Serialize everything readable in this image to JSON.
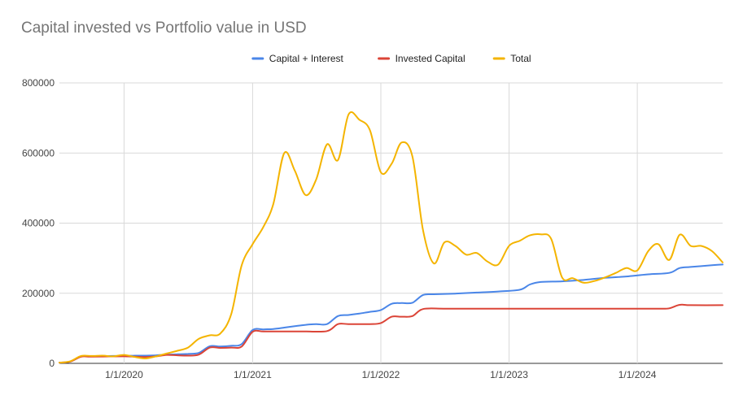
{
  "chart_data": {
    "type": "line",
    "title": "Capital invested vs Portfolio value in USD",
    "xlabel": "",
    "ylabel": "",
    "ylim": [
      0,
      800000
    ],
    "y_ticks": [
      0,
      200000,
      400000,
      600000,
      800000
    ],
    "y_tick_labels": [
      "0",
      "200000",
      "400000",
      "600000",
      "800000"
    ],
    "xlim": [
      "2019-07-01",
      "2024-08-31"
    ],
    "x_ticks": [
      "2020-01-01",
      "2021-01-01",
      "2022-01-01",
      "2023-01-01",
      "2024-01-01"
    ],
    "x_tick_labels": [
      "1/1/2020",
      "1/1/2021",
      "1/1/2022",
      "1/1/2023",
      "1/1/2024"
    ],
    "grid": true,
    "legend_position": "top-center",
    "series": [
      {
        "name": "Capital + Interest",
        "color": "#4a86e8",
        "points": [
          [
            "2019-07-01",
            2000
          ],
          [
            "2019-08-01",
            5000
          ],
          [
            "2019-09-01",
            20000
          ],
          [
            "2019-10-01",
            20000
          ],
          [
            "2019-12-01",
            21000
          ],
          [
            "2020-01-01",
            21000
          ],
          [
            "2020-02-01",
            22000
          ],
          [
            "2020-03-01",
            22000
          ],
          [
            "2020-04-01",
            23000
          ],
          [
            "2020-05-01",
            25000
          ],
          [
            "2020-06-01",
            26000
          ],
          [
            "2020-07-01",
            27000
          ],
          [
            "2020-08-01",
            30000
          ],
          [
            "2020-09-01",
            49000
          ],
          [
            "2020-10-01",
            48000
          ],
          [
            "2020-11-01",
            50000
          ],
          [
            "2020-12-01",
            55000
          ],
          [
            "2021-01-01",
            95000
          ],
          [
            "2021-02-01",
            97000
          ],
          [
            "2021-03-01",
            98000
          ],
          [
            "2021-04-01",
            102000
          ],
          [
            "2021-05-01",
            106000
          ],
          [
            "2021-06-01",
            110000
          ],
          [
            "2021-07-01",
            112000
          ],
          [
            "2021-08-01",
            112000
          ],
          [
            "2021-09-01",
            135000
          ],
          [
            "2021-10-01",
            138000
          ],
          [
            "2021-11-01",
            142000
          ],
          [
            "2021-12-01",
            147000
          ],
          [
            "2022-01-01",
            152000
          ],
          [
            "2022-02-01",
            170000
          ],
          [
            "2022-03-01",
            172000
          ],
          [
            "2022-04-01",
            173000
          ],
          [
            "2022-05-01",
            195000
          ],
          [
            "2022-06-01",
            197000
          ],
          [
            "2022-08-01",
            199000
          ],
          [
            "2022-10-01",
            202000
          ],
          [
            "2022-12-01",
            205000
          ],
          [
            "2023-02-01",
            210000
          ],
          [
            "2023-03-01",
            225000
          ],
          [
            "2023-04-01",
            232000
          ],
          [
            "2023-06-01",
            234000
          ],
          [
            "2023-08-01",
            238000
          ],
          [
            "2023-10-01",
            244000
          ],
          [
            "2023-12-01",
            248000
          ],
          [
            "2024-02-01",
            254000
          ],
          [
            "2024-04-01",
            258000
          ],
          [
            "2024-05-01",
            272000
          ],
          [
            "2024-06-01",
            275000
          ],
          [
            "2024-08-01",
            280000
          ],
          [
            "2024-08-31",
            282000
          ]
        ]
      },
      {
        "name": "Invested Capital",
        "color": "#db4437",
        "points": [
          [
            "2019-07-01",
            2000
          ],
          [
            "2019-08-01",
            5000
          ],
          [
            "2019-09-01",
            19000
          ],
          [
            "2019-10-01",
            19000
          ],
          [
            "2020-01-01",
            20000
          ],
          [
            "2020-02-01",
            19000
          ],
          [
            "2020-03-01",
            18000
          ],
          [
            "2020-04-01",
            20000
          ],
          [
            "2020-05-01",
            24000
          ],
          [
            "2020-06-01",
            23000
          ],
          [
            "2020-07-01",
            22000
          ],
          [
            "2020-08-01",
            25000
          ],
          [
            "2020-09-01",
            45000
          ],
          [
            "2020-10-01",
            44000
          ],
          [
            "2020-11-01",
            45000
          ],
          [
            "2020-12-01",
            48000
          ],
          [
            "2021-01-01",
            90000
          ],
          [
            "2021-02-01",
            91000
          ],
          [
            "2021-04-01",
            91000
          ],
          [
            "2021-06-01",
            91000
          ],
          [
            "2021-08-01",
            92000
          ],
          [
            "2021-09-01",
            112000
          ],
          [
            "2021-10-01",
            112000
          ],
          [
            "2021-12-01",
            112000
          ],
          [
            "2022-01-01",
            115000
          ],
          [
            "2022-02-01",
            133000
          ],
          [
            "2022-03-01",
            133000
          ],
          [
            "2022-04-01",
            135000
          ],
          [
            "2022-05-01",
            155000
          ],
          [
            "2022-07-01",
            156000
          ],
          [
            "2022-10-01",
            156000
          ],
          [
            "2023-01-01",
            156000
          ],
          [
            "2023-06-01",
            156000
          ],
          [
            "2024-01-01",
            156000
          ],
          [
            "2024-03-01",
            156000
          ],
          [
            "2024-04-01",
            157000
          ],
          [
            "2024-05-01",
            167000
          ],
          [
            "2024-06-01",
            166000
          ],
          [
            "2024-08-31",
            166000
          ]
        ]
      },
      {
        "name": "Total",
        "color": "#f4b400",
        "points": [
          [
            "2019-07-01",
            2000
          ],
          [
            "2019-08-01",
            6000
          ],
          [
            "2019-09-01",
            21000
          ],
          [
            "2019-10-01",
            21000
          ],
          [
            "2019-11-01",
            22000
          ],
          [
            "2019-12-01",
            20000
          ],
          [
            "2020-01-01",
            24000
          ],
          [
            "2020-02-01",
            18000
          ],
          [
            "2020-03-01",
            14000
          ],
          [
            "2020-04-01",
            20000
          ],
          [
            "2020-05-01",
            28000
          ],
          [
            "2020-06-01",
            36000
          ],
          [
            "2020-07-01",
            45000
          ],
          [
            "2020-08-01",
            70000
          ],
          [
            "2020-09-01",
            80000
          ],
          [
            "2020-10-01",
            85000
          ],
          [
            "2020-11-01",
            140000
          ],
          [
            "2020-12-01",
            280000
          ],
          [
            "2021-01-01",
            340000
          ],
          [
            "2021-02-01",
            390000
          ],
          [
            "2021-03-01",
            455000
          ],
          [
            "2021-04-01",
            600000
          ],
          [
            "2021-05-01",
            550000
          ],
          [
            "2021-06-01",
            480000
          ],
          [
            "2021-07-01",
            525000
          ],
          [
            "2021-08-01",
            625000
          ],
          [
            "2021-09-01",
            580000
          ],
          [
            "2021-10-01",
            710000
          ],
          [
            "2021-11-01",
            695000
          ],
          [
            "2021-12-01",
            665000
          ],
          [
            "2022-01-01",
            545000
          ],
          [
            "2022-02-01",
            570000
          ],
          [
            "2022-03-01",
            630000
          ],
          [
            "2022-04-01",
            590000
          ],
          [
            "2022-05-01",
            380000
          ],
          [
            "2022-06-01",
            285000
          ],
          [
            "2022-07-01",
            345000
          ],
          [
            "2022-08-01",
            335000
          ],
          [
            "2022-09-01",
            310000
          ],
          [
            "2022-10-01",
            315000
          ],
          [
            "2022-11-01",
            290000
          ],
          [
            "2022-12-01",
            282000
          ],
          [
            "2023-01-01",
            335000
          ],
          [
            "2023-02-01",
            350000
          ],
          [
            "2023-03-01",
            365000
          ],
          [
            "2023-04-01",
            368000
          ],
          [
            "2023-05-01",
            355000
          ],
          [
            "2023-06-01",
            245000
          ],
          [
            "2023-07-01",
            243000
          ],
          [
            "2023-08-01",
            230000
          ],
          [
            "2023-09-01",
            235000
          ],
          [
            "2023-10-01",
            245000
          ],
          [
            "2023-11-01",
            258000
          ],
          [
            "2023-12-01",
            272000
          ],
          [
            "2024-01-01",
            265000
          ],
          [
            "2024-02-01",
            320000
          ],
          [
            "2024-03-01",
            340000
          ],
          [
            "2024-04-01",
            295000
          ],
          [
            "2024-05-01",
            367000
          ],
          [
            "2024-06-01",
            335000
          ],
          [
            "2024-07-01",
            335000
          ],
          [
            "2024-08-01",
            320000
          ],
          [
            "2024-08-31",
            288000
          ]
        ]
      }
    ]
  }
}
